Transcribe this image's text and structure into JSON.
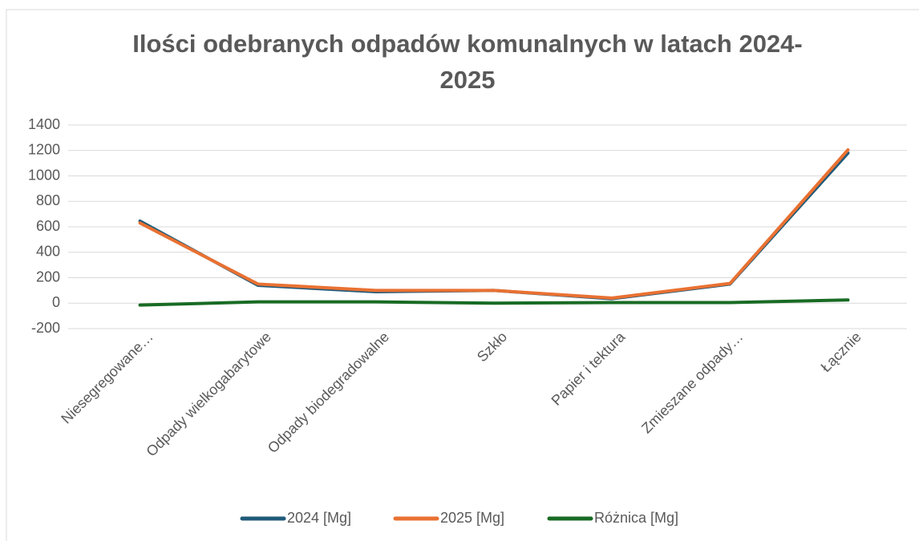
{
  "chart_data": {
    "type": "line",
    "title": "Ilości odebranych odpadów komunalnych w latach 2024-2025",
    "categories": [
      "Niesegregowane…",
      "Odpady wielkogabarytowe",
      "Odpady biodegradowalne",
      "Szkło",
      "Papier i tektura",
      "Zmieszane odpady…",
      "Łącznie"
    ],
    "series": [
      {
        "name": "2024 [Mg]",
        "color": "#1f5a7a",
        "values": [
          645,
          140,
          90,
          100,
          35,
          150,
          1180
        ]
      },
      {
        "name": "2025 [Mg]",
        "color": "#e97132",
        "values": [
          630,
          150,
          100,
          100,
          40,
          155,
          1205
        ]
      },
      {
        "name": "Różnica [Mg]",
        "color": "#196b24",
        "values": [
          -15,
          10,
          10,
          0,
          5,
          5,
          25
        ]
      }
    ],
    "ylim": [
      -200,
      1400
    ],
    "yticks": [
      -200,
      0,
      200,
      400,
      600,
      800,
      1000,
      1200,
      1400
    ],
    "grid": true,
    "legend": "bottom"
  }
}
